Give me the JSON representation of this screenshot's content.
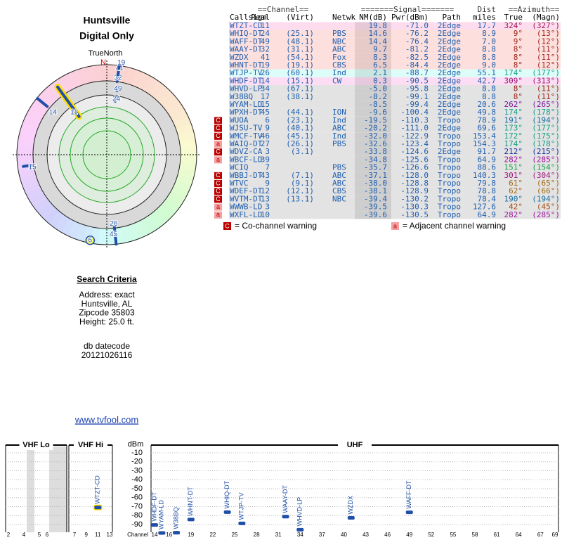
{
  "header": {
    "title": "Huntsville",
    "subtitle": "Digital Only"
  },
  "polar": {
    "north_label": "TrueNorth",
    "north": "N"
  },
  "search": {
    "heading": "Search Criteria",
    "lines": [
      "Address: exact",
      "Huntsville, AL",
      "Zipcode 35803",
      "Height: 25.0 ft."
    ]
  },
  "datecode": {
    "label": "db datecode",
    "value": "20121026116"
  },
  "link": "www.tvfool.com",
  "table": {
    "group_headers": [
      "==Channel==",
      "=======Signal=======",
      "Dist",
      "==Azimuth=="
    ],
    "columns": [
      "Callsign",
      "Real",
      "(Virt)",
      "Netwk",
      "NM(dB)",
      "Pwr(dBm)",
      "Path",
      "miles",
      "True",
      "(Magn)"
    ],
    "rows": [
      {
        "cells": [
          "WTZT-CD",
          "11",
          null,
          null,
          "19.8",
          "-71.0",
          "2Edge",
          "17.7",
          "324°",
          "(327°)"
        ]
      },
      {
        "cells": [
          "WHIQ-DT",
          "24",
          "(25.1)",
          "PBS",
          "14.6",
          "-76.2",
          "2Edge",
          "8.9",
          "9°",
          "(13°)"
        ]
      },
      {
        "cells": [
          "WAFF-DT",
          "49",
          "(48.1)",
          "NBC",
          "14.4",
          "-76.4",
          "2Edge",
          "7.0",
          "9°",
          "(12°)"
        ]
      },
      {
        "cells": [
          "WAAY-DT",
          "32",
          "(31.1)",
          "ABC",
          "9.7",
          "-81.2",
          "2Edge",
          "8.8",
          "8°",
          "(11°)"
        ]
      },
      {
        "cells": [
          "WZDX",
          "41",
          "(54.1)",
          "Fox",
          "8.3",
          "-82.5",
          "2Edge",
          "8.8",
          "8°",
          "(11°)"
        ]
      },
      {
        "cells": [
          "WHNT-DT",
          "19",
          "(19.1)",
          "CBS",
          "6.5",
          "-84.4",
          "2Edge",
          "9.0",
          "8°",
          "(12°)"
        ]
      },
      {
        "cells": [
          "WTJP-TV",
          "26",
          "(60.1)",
          "Ind",
          "2.1",
          "-88.7",
          "2Edge",
          "55.1",
          "174°",
          "(177°)"
        ]
      },
      {
        "cells": [
          "WHDF-DT",
          "14",
          "(15.1)",
          "CW",
          "0.3",
          "-90.5",
          "2Edge",
          "42.7",
          "309°",
          "(313°)"
        ]
      },
      {
        "cells": [
          "WHVD-LP",
          "34",
          "(67.1)",
          null,
          "-5.0",
          "-95.8",
          "2Edge",
          "8.8",
          "8°",
          "(11°)"
        ]
      },
      {
        "cells": [
          "W38BQ",
          "17",
          "(38.1)",
          null,
          "-8.2",
          "-99.1",
          "2Edge",
          "8.8",
          "8°",
          "(11°)"
        ]
      },
      {
        "cells": [
          "WYAM-LD",
          "15",
          null,
          null,
          "-8.5",
          "-99.4",
          "2Edge",
          "20.6",
          "262°",
          "(265°)"
        ]
      },
      {
        "cells": [
          "WPXH-DT",
          "45",
          "(44.1)",
          "ION",
          "-9.6",
          "-100.4",
          "2Edge",
          "49.8",
          "174°",
          "(178°)"
        ]
      },
      {
        "cells": [
          "WUOA",
          "6",
          "(23.1)",
          "Ind",
          "-19.5",
          "-110.3",
          "Tropo",
          "78.9",
          "191°",
          "(194°)"
        ],
        "warning": "C"
      },
      {
        "cells": [
          "WJSU-TV",
          "9",
          "(40.1)",
          "ABC",
          "-20.2",
          "-111.0",
          "2Edge",
          "69.6",
          "173°",
          "(177°)"
        ],
        "warning": "C"
      },
      {
        "cells": [
          "WMCF-TV",
          "46",
          "(45.1)",
          "Ind",
          "-32.0",
          "-122.9",
          "Tropo",
          "153.4",
          "172°",
          "(175°)"
        ],
        "warning": "C"
      },
      {
        "cells": [
          "WAIQ-DT",
          "27",
          "(26.1)",
          "PBS",
          "-32.6",
          "-123.4",
          "Tropo",
          "154.3",
          "174°",
          "(178°)"
        ],
        "warning": "a"
      },
      {
        "cells": [
          "WDVZ-CA",
          "3",
          "(3.1)",
          null,
          "-33.8",
          "-124.6",
          "2Edge",
          "91.7",
          "212°",
          "(215°)"
        ],
        "warning": "C"
      },
      {
        "cells": [
          "WBCF-LD",
          "39",
          null,
          null,
          "-34.8",
          "-125.6",
          "Tropo",
          "64.9",
          "282°",
          "(285°)"
        ],
        "warning": "a"
      },
      {
        "cells": [
          "WCIQ",
          "7",
          null,
          "PBS",
          "-35.7",
          "-126.6",
          "Tropo",
          "88.6",
          "151°",
          "(154°)"
        ]
      },
      {
        "cells": [
          "WBBJ-DT",
          "43",
          "(7.1)",
          "ABC",
          "-37.1",
          "-128.0",
          "Tropo",
          "140.3",
          "301°",
          "(304°)"
        ],
        "warning": "C"
      },
      {
        "cells": [
          "WTVC",
          "9",
          "(9.1)",
          "ABC",
          "-38.0",
          "-128.8",
          "Tropo",
          "79.8",
          "61°",
          "(65°)"
        ],
        "warning": "C"
      },
      {
        "cells": [
          "WDEF-DT",
          "12",
          "(12.1)",
          "CBS",
          "-38.1",
          "-128.9",
          "Tropo",
          "78.8",
          "62°",
          "(66°)"
        ],
        "warning": "C"
      },
      {
        "cells": [
          "WVTM-DT",
          "13",
          "(13.1)",
          "NBC",
          "-39.4",
          "-130.2",
          "Tropo",
          "78.4",
          "190°",
          "(194°)"
        ],
        "warning": "C"
      },
      {
        "cells": [
          "WWWB-LD",
          "3",
          null,
          null,
          "-39.5",
          "-130.3",
          "Tropo",
          "127.6",
          "42°",
          "(45°)"
        ],
        "warning": "a"
      },
      {
        "cells": [
          "WXFL-LD",
          "10",
          null,
          null,
          "-39.6",
          "-130.5",
          "Tropo",
          "64.9",
          "282°",
          "(285°)"
        ],
        "warning": "a"
      }
    ]
  },
  "legend": {
    "co_icon": "C",
    "co_text": "= Co-channel warning",
    "adj_icon": "a",
    "adj_text": "= Adjacent channel warning"
  },
  "spectrum": {
    "bands": [
      "VHF Lo",
      "VHF Hi",
      "UHF"
    ],
    "unit": "dBm",
    "axis_label": "Channel",
    "yticks": [
      -10,
      -20,
      -30,
      -40,
      -50,
      -60,
      -70,
      -80,
      -90
    ],
    "vhf_lo_channels": [
      2,
      4,
      5,
      6
    ],
    "vhf_hi_channels": [
      7,
      9,
      11,
      13
    ],
    "uhf_channels": [
      14,
      16,
      19,
      22,
      25,
      28,
      31,
      34,
      37,
      40,
      43,
      46,
      49,
      52,
      55,
      58,
      61,
      64,
      67,
      69
    ]
  }
}
